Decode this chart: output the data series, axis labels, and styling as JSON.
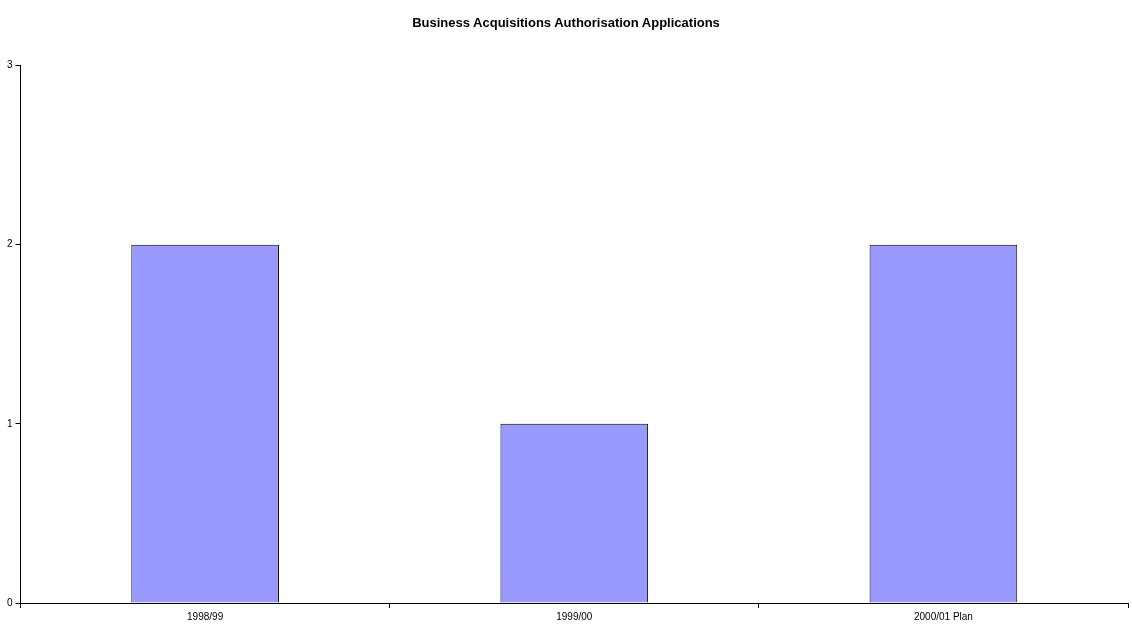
{
  "chart_data": {
    "type": "bar",
    "title": "Business Acquisitions Authorisation Applications",
    "categories": [
      "1998/99",
      "1999/00",
      "2000/01 Plan"
    ],
    "values": [
      2,
      1,
      2
    ],
    "color": "#9999ff",
    "ylim": [
      0,
      3
    ],
    "yticks": [
      0,
      1,
      2,
      3
    ],
    "grid": false,
    "legend": false
  }
}
